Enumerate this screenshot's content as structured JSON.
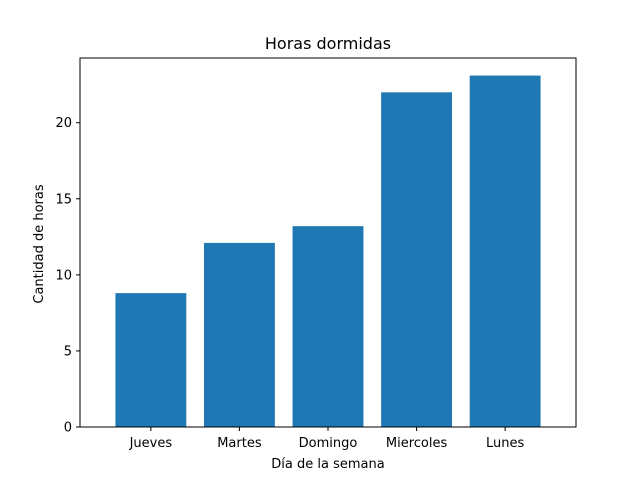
{
  "chart_data": {
    "type": "bar",
    "title": "Horas dormidas",
    "xlabel": "Día de la semana",
    "ylabel": "Cantidad de horas",
    "categories": [
      "Jueves",
      "Martes",
      "Domingo",
      "Miercoles",
      "Lunes"
    ],
    "values": [
      8.8,
      12.1,
      13.2,
      22.0,
      23.1
    ],
    "ylim": [
      0,
      24.255
    ],
    "yticks": [
      0,
      5,
      10,
      15,
      20
    ],
    "bar_color": "#1f77b4",
    "grid": false,
    "legend": "none"
  }
}
